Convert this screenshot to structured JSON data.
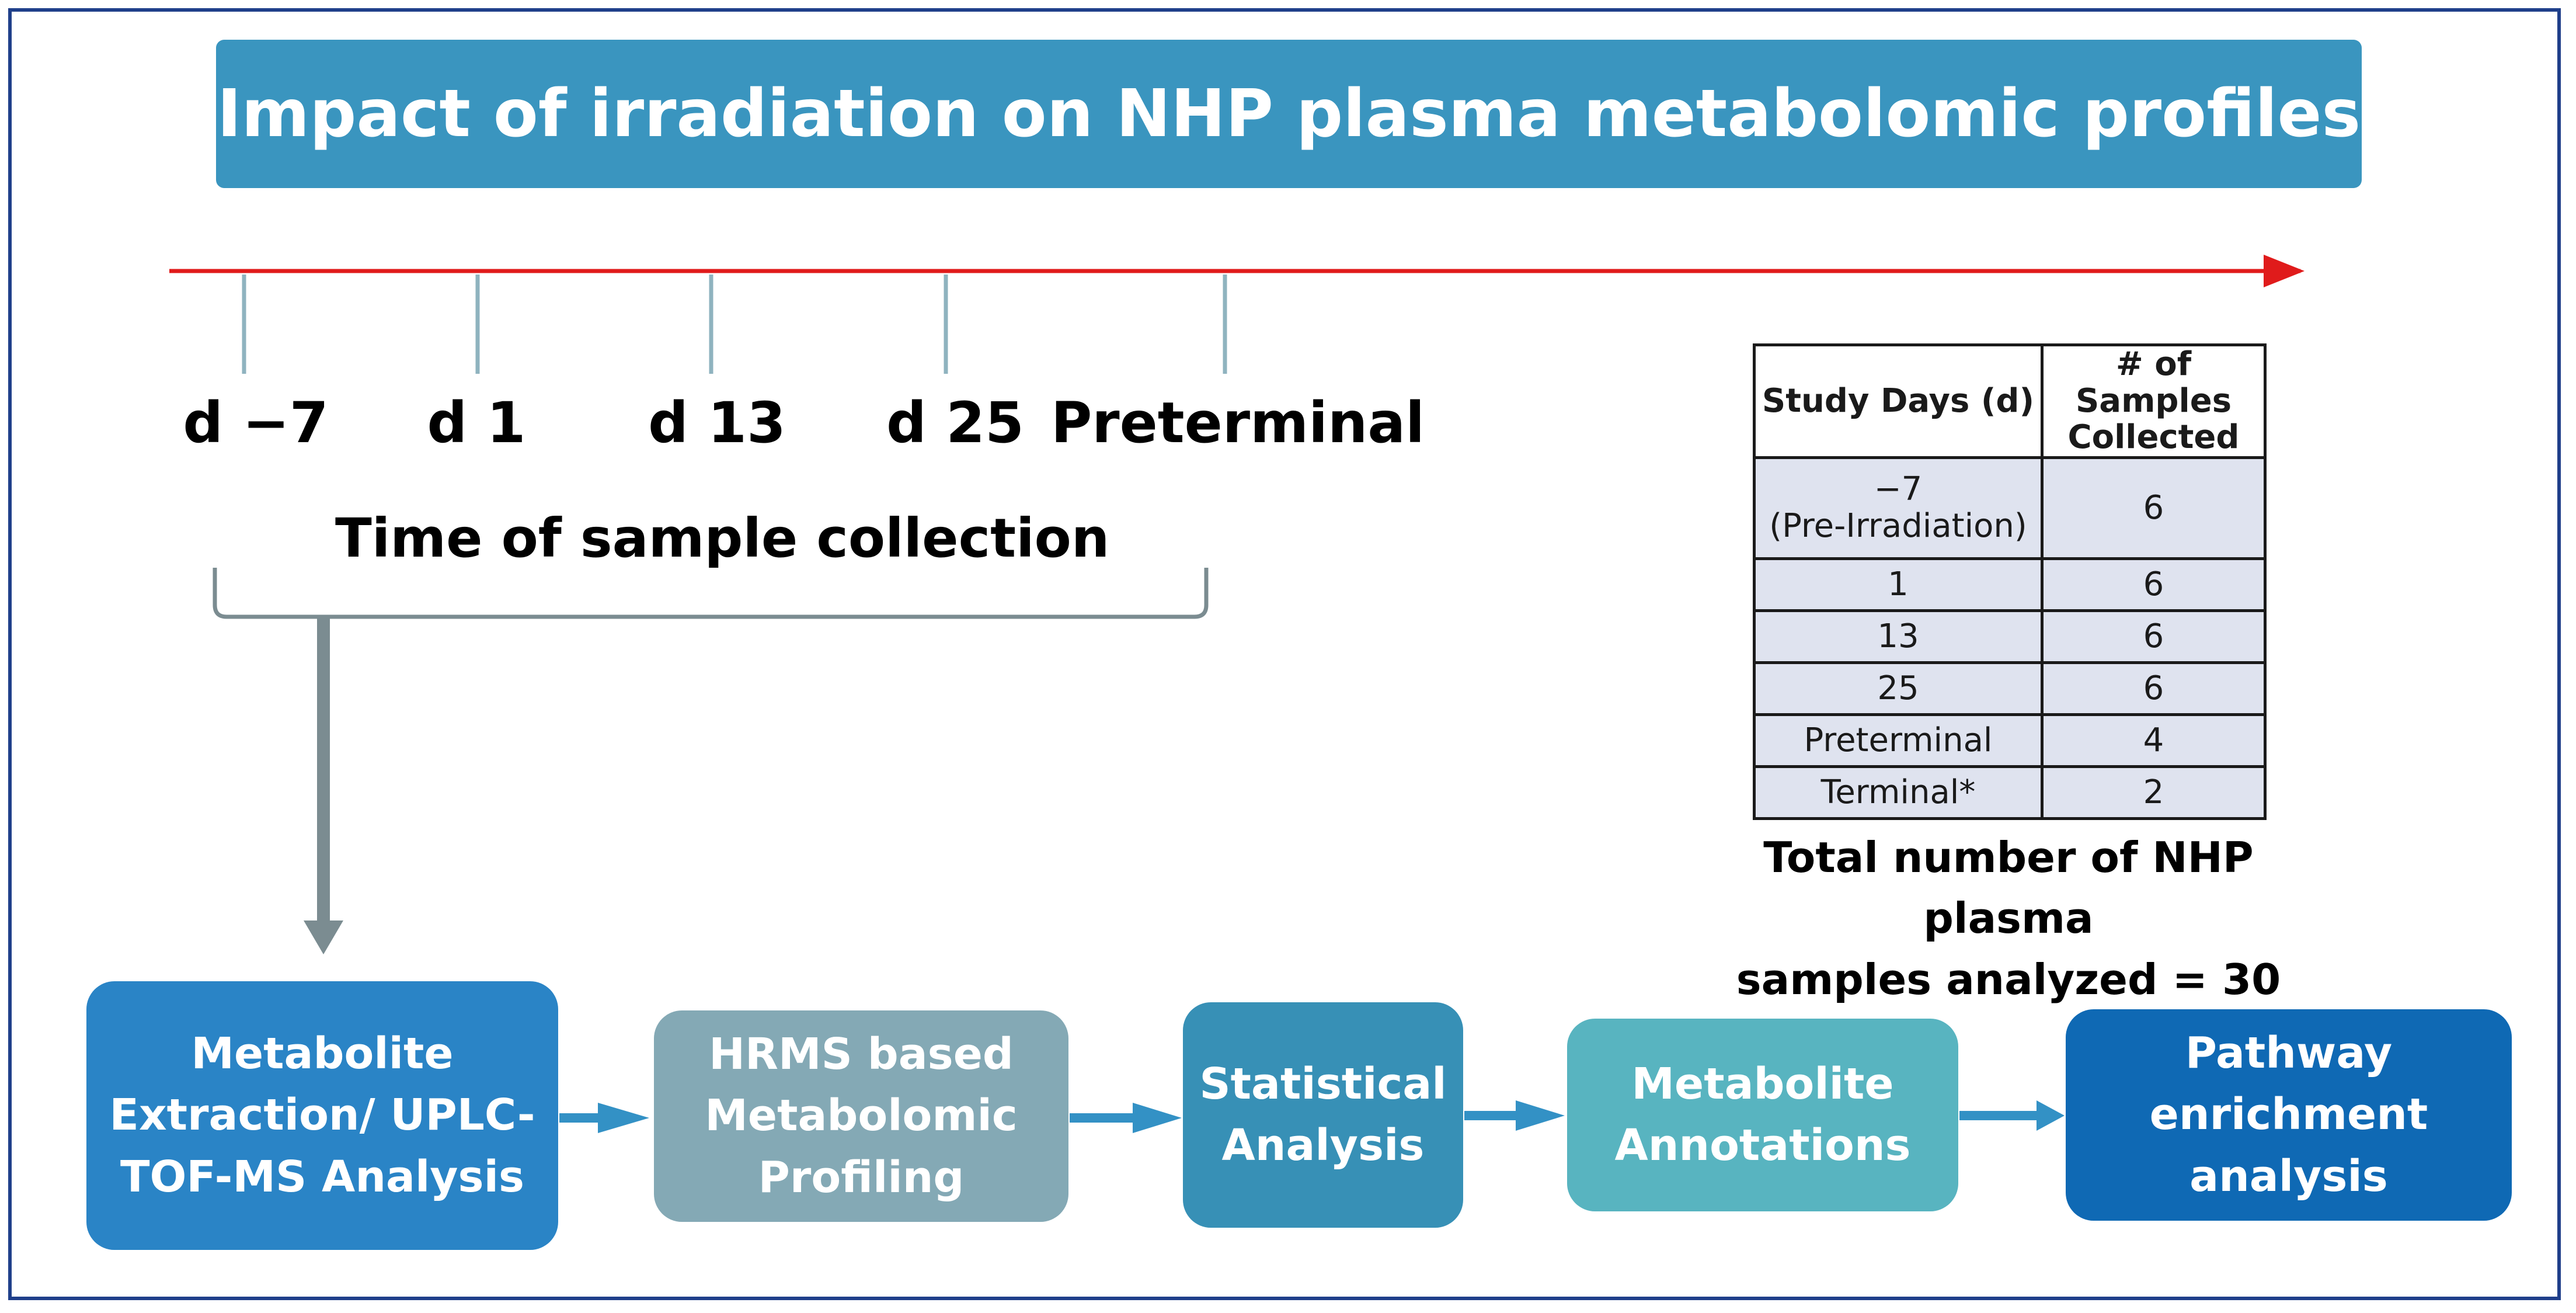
{
  "title": "Impact of irradiation on NHP plasma metabolomic profiles",
  "timeline": {
    "labels": [
      "d −7",
      "d 1",
      "d 13",
      "d 25",
      "Preterminal"
    ],
    "caption": "Time of sample collection",
    "arrow_color": "#e01b1b",
    "tick_color": "#8fb3bf"
  },
  "table": {
    "headers": [
      "Study Days (d)",
      "# of Samples Collected"
    ],
    "rows": [
      {
        "day": "−7\n(Pre-Irradiation)",
        "count": "6"
      },
      {
        "day": "1",
        "count": "6"
      },
      {
        "day": "13",
        "count": "6"
      },
      {
        "day": "25",
        "count": "6"
      },
      {
        "day": "Preterminal",
        "count": "4"
      },
      {
        "day": "Terminal*",
        "count": "2"
      }
    ],
    "total_line1": "Total number of NHP plasma",
    "total_line2": "samples analyzed = 30"
  },
  "workflow": [
    {
      "lines": [
        "Metabolite",
        "Extraction/ UPLC-",
        "TOF-MS Analysis"
      ],
      "color": "#2a84c6"
    },
    {
      "lines": [
        "HRMS based",
        "Metabolomic",
        "Profiling"
      ],
      "color": "#84a9b5"
    },
    {
      "lines": [
        "Statistical",
        "Analysis"
      ],
      "color": "#3790b6"
    },
    {
      "lines": [
        "Metabolite",
        "Annotations"
      ],
      "color": "#58b4c0"
    },
    {
      "lines": [
        "Pathway",
        "enrichment",
        "analysis"
      ],
      "color": "#0f69b4"
    }
  ],
  "colors": {
    "banner": "#3a95bf",
    "frame": "#1f3f8a",
    "connector": "#7b8c91",
    "flow_arrow": "#3391c5"
  }
}
